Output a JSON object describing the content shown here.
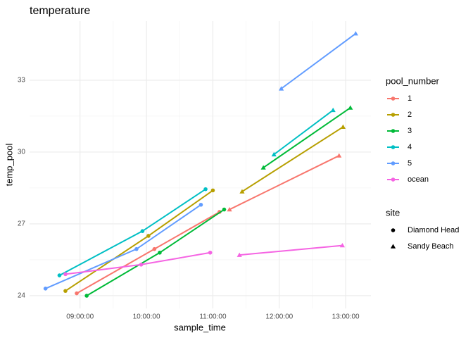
{
  "chart_data": {
    "type": "line",
    "title": "temperature",
    "x_label": "sample_time",
    "y_label": "temp_pool",
    "xlim": [
      8.24,
      13.38
    ],
    "ylim": [
      23.47,
      35.47
    ],
    "xticks": [
      {
        "value": 9,
        "label": "09:00:00"
      },
      {
        "value": 10,
        "label": "10:00:00"
      },
      {
        "value": 11,
        "label": "11:00:00"
      },
      {
        "value": 12,
        "label": "12:00:00"
      },
      {
        "value": 13,
        "label": "13:00:00"
      }
    ],
    "yticks": [
      24,
      27,
      30,
      33
    ],
    "grid": true,
    "color_legend_title": "pool_number",
    "shape_legend_title": "site",
    "sites": [
      {
        "name": "Diamond Head",
        "shape": "circle"
      },
      {
        "name": "Sandy Beach",
        "shape": "triangle"
      }
    ],
    "series": [
      {
        "name": "1",
        "color": "#F8766D",
        "lines": [
          {
            "site": "Diamond Head",
            "x": [
              8.95,
              10.12,
              11.1
            ],
            "values": [
              24.1,
              25.95,
              27.5
            ]
          },
          {
            "site": "Sandy Beach",
            "x": [
              11.25,
              12.9
            ],
            "values": [
              27.6,
              29.85
            ]
          }
        ]
      },
      {
        "name": "2",
        "color": "#B79F00",
        "lines": [
          {
            "site": "Diamond Head",
            "x": [
              8.78,
              10.03,
              11.0
            ],
            "values": [
              24.2,
              26.5,
              28.4
            ]
          },
          {
            "site": "Sandy Beach",
            "x": [
              11.44,
              12.96
            ],
            "values": [
              28.35,
              31.05
            ]
          }
        ]
      },
      {
        "name": "3",
        "color": "#00BA38",
        "lines": [
          {
            "site": "Diamond Head",
            "x": [
              9.1,
              10.2,
              11.17
            ],
            "values": [
              24.0,
              25.8,
              27.6
            ]
          },
          {
            "site": "Sandy Beach",
            "x": [
              11.76,
              13.07
            ],
            "values": [
              29.35,
              31.85
            ]
          }
        ]
      },
      {
        "name": "4",
        "color": "#00BFC4",
        "lines": [
          {
            "site": "Diamond Head",
            "x": [
              8.69,
              9.94,
              10.89
            ],
            "values": [
              24.85,
              26.7,
              28.45
            ]
          },
          {
            "site": "Sandy Beach",
            "x": [
              11.92,
              12.81
            ],
            "values": [
              29.9,
              31.75
            ]
          }
        ]
      },
      {
        "name": "5",
        "color": "#619CFF",
        "lines": [
          {
            "site": "Diamond Head",
            "x": [
              8.48,
              9.85,
              10.82
            ],
            "values": [
              24.3,
              25.95,
              27.8
            ]
          },
          {
            "site": "Sandy Beach",
            "x": [
              12.03,
              13.15
            ],
            "values": [
              32.65,
              34.95
            ]
          }
        ]
      },
      {
        "name": "ocean",
        "color": "#F564E3",
        "lines": [
          {
            "site": "Diamond Head",
            "x": [
              8.78,
              9.92,
              10.96
            ],
            "values": [
              24.9,
              25.3,
              25.8
            ]
          },
          {
            "site": "Sandy Beach",
            "x": [
              11.4,
              12.95
            ],
            "values": [
              25.7,
              26.1
            ]
          }
        ]
      }
    ]
  }
}
